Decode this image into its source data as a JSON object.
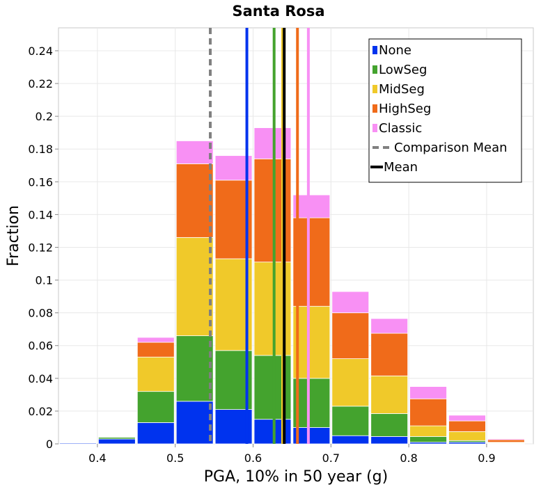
{
  "chart_data": {
    "type": "bar",
    "stacked": true,
    "title": "Santa Rosa",
    "xlabel": "PGA, 10% in 50 year (g)",
    "ylabel": "Fraction",
    "xlim": [
      0.35,
      0.96
    ],
    "ylim": [
      0,
      0.254
    ],
    "bin_width": 0.05,
    "x_ticks": [
      0.4,
      0.5,
      0.6,
      0.7,
      0.8,
      0.9
    ],
    "x_tick_labels": [
      "0.4",
      "0.5",
      "0.6",
      "0.7",
      "0.8",
      "0.9"
    ],
    "y_ticks": [
      0,
      0.02,
      0.04,
      0.06,
      0.08,
      0.1,
      0.12,
      0.14,
      0.16,
      0.18,
      0.2,
      0.22,
      0.24
    ],
    "y_tick_labels": [
      "0",
      "0.02",
      "0.04",
      "0.06",
      "0.08",
      "0.1",
      "0.12",
      "0.14",
      "0.16",
      "0.18",
      "0.2",
      "0.22",
      "0.24"
    ],
    "bin_centers": [
      0.375,
      0.425,
      0.475,
      0.525,
      0.575,
      0.625,
      0.675,
      0.725,
      0.775,
      0.825,
      0.875,
      0.925
    ],
    "series": [
      {
        "name": "None",
        "color": "#0033ee",
        "values": [
          0.0005,
          0.003,
          0.013,
          0.026,
          0.021,
          0.015,
          0.01,
          0.005,
          0.0045,
          0.001,
          0.001,
          0.0003
        ]
      },
      {
        "name": "LowSeg",
        "color": "#44a32e",
        "values": [
          0.0,
          0.001,
          0.019,
          0.04,
          0.036,
          0.039,
          0.03,
          0.018,
          0.014,
          0.0035,
          0.001,
          0.0003
        ]
      },
      {
        "name": "MidSeg",
        "color": "#f0c92a",
        "values": [
          0.0,
          0.0,
          0.021,
          0.06,
          0.056,
          0.057,
          0.044,
          0.029,
          0.023,
          0.0065,
          0.0055,
          0.0004
        ]
      },
      {
        "name": "HighSeg",
        "color": "#f06b1a",
        "values": [
          0.0,
          0.0,
          0.009,
          0.045,
          0.048,
          0.063,
          0.054,
          0.028,
          0.026,
          0.0165,
          0.0065,
          0.0015
        ]
      },
      {
        "name": "Classic",
        "color": "#f890f4",
        "values": [
          0.0,
          0.0,
          0.003,
          0.014,
          0.015,
          0.019,
          0.014,
          0.013,
          0.009,
          0.0075,
          0.0035,
          0.0006
        ]
      }
    ],
    "reference_lines": [
      {
        "name": "None",
        "x": 0.592,
        "color": "#0033ee",
        "style": "solid"
      },
      {
        "name": "LowSeg",
        "x": 0.627,
        "color": "#44a32e",
        "style": "solid"
      },
      {
        "name": "MidSeg",
        "x": 0.638,
        "color": "#f0c92a",
        "style": "solid"
      },
      {
        "name": "HighSeg",
        "x": 0.657,
        "color": "#f06b1a",
        "style": "solid"
      },
      {
        "name": "Classic",
        "x": 0.671,
        "color": "#f890f4",
        "style": "solid"
      },
      {
        "name": "Comparison Mean",
        "x": 0.545,
        "color": "#808080",
        "style": "dashed"
      },
      {
        "name": "Mean",
        "x": 0.64,
        "color": "#000000",
        "style": "solid"
      }
    ],
    "legend": {
      "position": "top-right",
      "items": [
        {
          "label": "None",
          "color": "#0033ee",
          "kind": "box"
        },
        {
          "label": "LowSeg",
          "color": "#44a32e",
          "kind": "box"
        },
        {
          "label": "MidSeg",
          "color": "#f0c92a",
          "kind": "box"
        },
        {
          "label": "HighSeg",
          "color": "#f06b1a",
          "kind": "box"
        },
        {
          "label": "Classic",
          "color": "#f890f4",
          "kind": "box"
        },
        {
          "label": "Comparison Mean",
          "color": "#808080",
          "kind": "dashed"
        },
        {
          "label": "Mean",
          "color": "#000000",
          "kind": "line"
        }
      ]
    },
    "grid": true
  }
}
